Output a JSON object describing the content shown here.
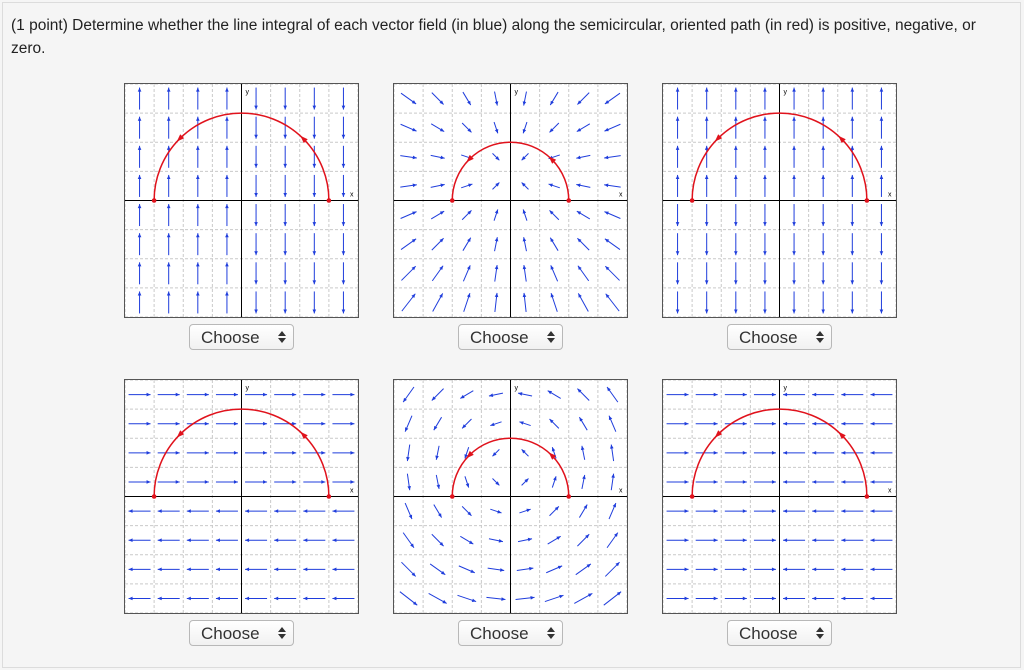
{
  "question": {
    "text": "(1 point) Determine whether the line integral of each vector field (in blue) along the semicircular, oriented path (in red) is positive, negative, or zero."
  },
  "axes": {
    "x_label": "x",
    "y_label": "y"
  },
  "colors": {
    "field": "#1f3ddc",
    "path": "#e0121c",
    "axis": "#000000",
    "grid": "#c9c9c9"
  },
  "plots": [
    {
      "id": "plot-1",
      "field": "vertical-up-on-left-down-on-right",
      "path_direction": "counterclockwise",
      "semicircle": "large",
      "select_label": "Choose"
    },
    {
      "id": "plot-2",
      "field": "radial-inward",
      "path_direction": "counterclockwise",
      "semicircle": "small",
      "select_label": "Choose"
    },
    {
      "id": "plot-3",
      "field": "vertical-up-above-down-below",
      "path_direction": "counterclockwise",
      "semicircle": "large",
      "select_label": "Choose"
    },
    {
      "id": "plot-4",
      "field": "horizontal-right-above-left-below",
      "path_direction": "counterclockwise",
      "semicircle": "large",
      "select_label": "Choose"
    },
    {
      "id": "plot-5",
      "field": "rotational-counterclockwise",
      "path_direction": "counterclockwise",
      "semicircle": "small",
      "select_label": "Choose"
    },
    {
      "id": "plot-6",
      "field": "horizontal-right-on-left-left-on-right",
      "path_direction": "counterclockwise",
      "semicircle": "large",
      "select_label": "Choose"
    }
  ]
}
